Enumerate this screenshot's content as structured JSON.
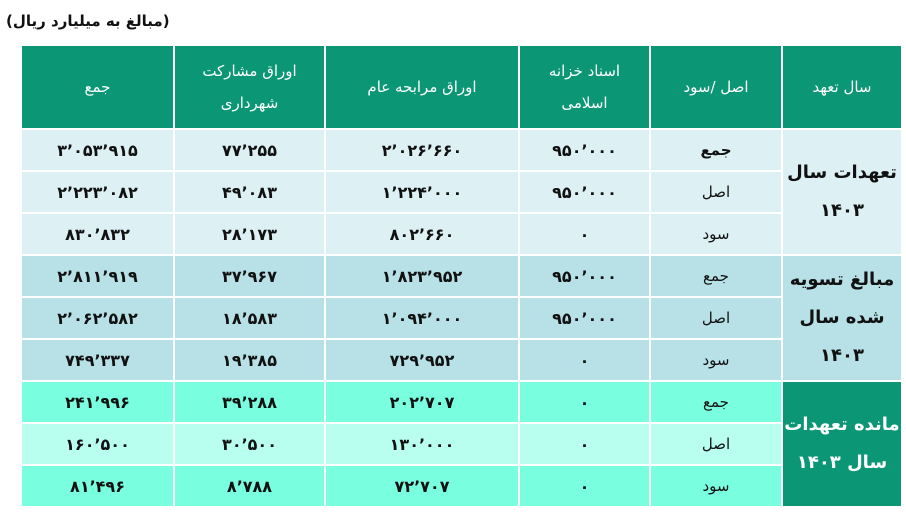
{
  "caption": "(مبالغ به میلیارد ریال)",
  "colors": {
    "header": "#0b9676",
    "group1": "#ddf0f4",
    "group2": "#b7e1e7",
    "group3": "#79ffdf",
    "group3_alt": "#b9fff0"
  },
  "headers": [
    "سال تعهد",
    "اصل /سود",
    "اسناد خزانه اسلامی",
    "اوراق مرابحه عام",
    "اوراق مشارکت شهرداری",
    "جمع"
  ],
  "groups": [
    {
      "label": "تعهدات سال ۱۴۰۳",
      "rows": [
        {
          "kind": "جمع",
          "treasury": "۹۵۰٬۰۰۰",
          "murabaha": "۲٬۰۲۶٬۶۶۰",
          "municipal": "۷۷٬۲۵۵",
          "total": "۳٬۰۵۳٬۹۱۵"
        },
        {
          "kind": "اصل",
          "treasury": "۹۵۰٬۰۰۰",
          "murabaha": "۱٬۲۲۴٬۰۰۰",
          "municipal": "۴۹٬۰۸۳",
          "total": "۲٬۲۲۳٬۰۸۲"
        },
        {
          "kind": "سود",
          "treasury": "۰",
          "murabaha": "۸۰۲٬۶۶۰",
          "municipal": "۲۸٬۱۷۳",
          "total": "۸۳۰٬۸۳۲"
        }
      ]
    },
    {
      "label": "مبالغ تسویه شده سال ۱۴۰۳",
      "rows": [
        {
          "kind": "جمع",
          "treasury": "۹۵۰٬۰۰۰",
          "murabaha": "۱٬۸۲۳٬۹۵۲",
          "municipal": "۳۷٬۹۶۷",
          "total": "۲٬۸۱۱٬۹۱۹"
        },
        {
          "kind": "اصل",
          "treasury": "۹۵۰٬۰۰۰",
          "murabaha": "۱٬۰۹۴٬۰۰۰",
          "municipal": "۱۸٬۵۸۳",
          "total": "۲٬۰۶۲٬۵۸۲"
        },
        {
          "kind": "سود",
          "treasury": "۰",
          "murabaha": "۷۲۹٬۹۵۲",
          "municipal": "۱۹٬۳۸۵",
          "total": "۷۴۹٬۳۳۷"
        }
      ]
    },
    {
      "label": "مانده تعهدات سال ۱۴۰۳",
      "rows": [
        {
          "kind": "جمع",
          "treasury": "۰",
          "murabaha": "۲۰۲٬۷۰۷",
          "municipal": "۳۹٬۲۸۸",
          "total": "۲۴۱٬۹۹۶"
        },
        {
          "kind": "اصل",
          "treasury": "۰",
          "murabaha": "۱۳۰٬۰۰۰",
          "municipal": "۳۰٬۵۰۰",
          "total": "۱۶۰٬۵۰۰"
        },
        {
          "kind": "سود",
          "treasury": "۰",
          "murabaha": "۷۲٬۷۰۷",
          "municipal": "۸٬۷۸۸",
          "total": "۸۱٬۴۹۶"
        }
      ]
    }
  ]
}
